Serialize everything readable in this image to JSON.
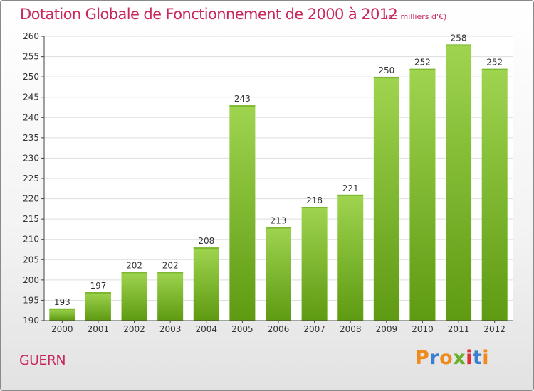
{
  "header": {
    "title": "Dotation Globale de Fonctionnement de 2000 à 2012",
    "unit": "(en milliers d'€)"
  },
  "footer": {
    "town": "GUERN",
    "logo_text": "Proxiti",
    "logo_colors": [
      "#f08a1c",
      "#3a7fd0",
      "#f08a1c",
      "#6ab02e",
      "#e03030",
      "#3a7fd0",
      "#f08a1c"
    ]
  },
  "colors": {
    "accent": "#c8285a",
    "bar_light": "#9fd44f",
    "bar_dark": "#5e9a12",
    "grid": "#dddddd",
    "axis": "#444444"
  },
  "chart_data": {
    "type": "bar",
    "categories": [
      "2000",
      "2001",
      "2002",
      "2003",
      "2004",
      "2005",
      "2006",
      "2007",
      "2008",
      "2009",
      "2010",
      "2011",
      "2012"
    ],
    "values": [
      193,
      197,
      202,
      202,
      208,
      243,
      213,
      218,
      221,
      250,
      252,
      258,
      252
    ],
    "title": "Dotation Globale de Fonctionnement de 2000 à 2012",
    "xlabel": "",
    "ylabel": "",
    "ylim": [
      190,
      260
    ],
    "yticks": [
      190,
      195,
      200,
      205,
      210,
      215,
      220,
      225,
      230,
      235,
      240,
      245,
      250,
      255,
      260
    ],
    "grid": true,
    "data_labels": true
  }
}
